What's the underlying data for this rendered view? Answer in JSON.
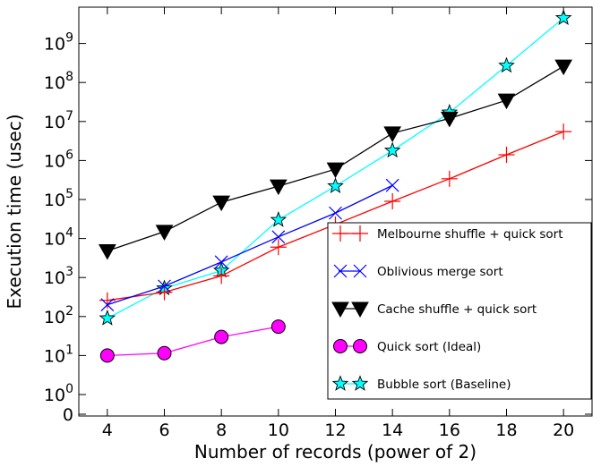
{
  "chart_data": {
    "type": "line",
    "xlabel": "Number of records (power of 2)",
    "ylabel": "Execution time (usec)",
    "y_scale": "symlog",
    "xlim": [
      3,
      21
    ],
    "x_ticks": [
      "4",
      "6",
      "8",
      "10",
      "12",
      "14",
      "16",
      "18",
      "20"
    ],
    "y_ticks": [
      {
        "value": 0,
        "label": "0"
      },
      {
        "value": 1,
        "base": "10",
        "exp": "0"
      },
      {
        "value": 10,
        "base": "10",
        "exp": "1"
      },
      {
        "value": 100,
        "base": "10",
        "exp": "2"
      },
      {
        "value": 1000,
        "base": "10",
        "exp": "3"
      },
      {
        "value": 10000,
        "base": "10",
        "exp": "4"
      },
      {
        "value": 100000,
        "base": "10",
        "exp": "5"
      },
      {
        "value": 1000000,
        "base": "10",
        "exp": "6"
      },
      {
        "value": 10000000,
        "base": "10",
        "exp": "7"
      },
      {
        "value": 100000000,
        "base": "10",
        "exp": "8"
      },
      {
        "value": 1000000000,
        "base": "10",
        "exp": "9"
      }
    ],
    "grid": false,
    "legend_position": "lower-right",
    "series": [
      {
        "name": "Melbourne shuffle + quick sort",
        "color": "#ff0000",
        "marker": "plus",
        "x": [
          4,
          6,
          8,
          10,
          12,
          14,
          16,
          18,
          20
        ],
        "y": [
          260,
          420,
          1100,
          6000,
          23000,
          90000,
          340000,
          1400000,
          5500000
        ]
      },
      {
        "name": "Oblivious merge sort",
        "color": "#0000ff",
        "marker": "x",
        "x": [
          4,
          6,
          8,
          10,
          12,
          14
        ],
        "y": [
          200,
          600,
          2500,
          11000,
          45000,
          230000
        ]
      },
      {
        "name": "Cache shuffle + quick sort",
        "color": "#000000",
        "marker": "triangle-down",
        "x": [
          4,
          6,
          8,
          10,
          12,
          14,
          16,
          18,
          20
        ],
        "y": [
          4800,
          15000,
          85000,
          220000,
          600000,
          5000000,
          12000000,
          35000000,
          260000000
        ]
      },
      {
        "name": "Quick sort (Ideal)",
        "color": "#ff00ff",
        "marker": "circle",
        "x": [
          4,
          6,
          8,
          10
        ],
        "y": [
          10,
          11.5,
          30,
          55
        ]
      },
      {
        "name": "Bubble sort (Baseline)",
        "color": "#00ffff",
        "marker": "star",
        "x": [
          4,
          6,
          8,
          10,
          12,
          14,
          16,
          18,
          20
        ],
        "y": [
          90,
          530,
          1500,
          30000,
          220000,
          1800000,
          17000000,
          270000000,
          4500000000
        ]
      }
    ]
  }
}
